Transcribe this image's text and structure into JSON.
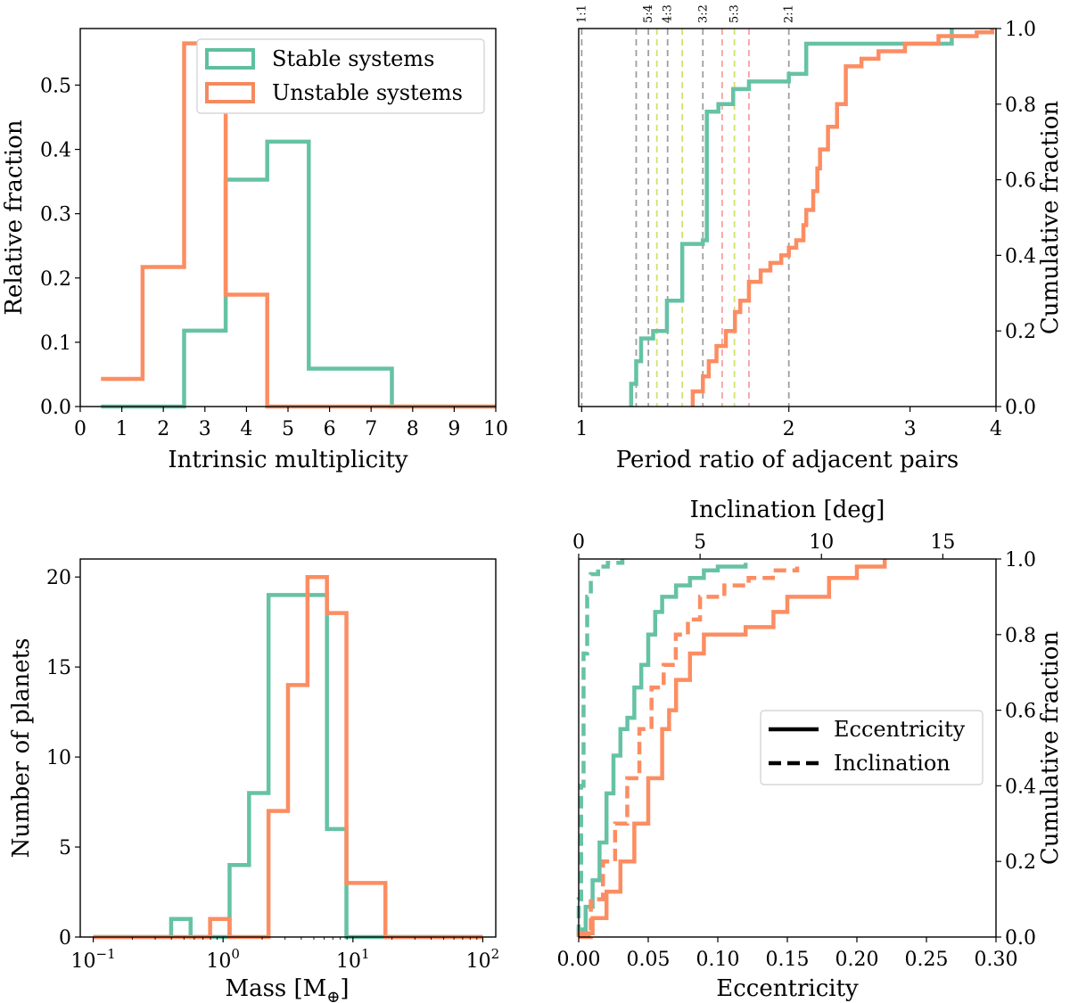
{
  "colors": {
    "stable": "#66c2a5",
    "unstable": "#fc8d62",
    "stable_legend": "#5fbf9f",
    "unstable_legend": "#f58a5e"
  },
  "chart_data": [
    {
      "id": "multiplicity",
      "type": "histogram-step",
      "xlabel": "Intrinsic multiplicity",
      "ylabel": "Relative fraction",
      "xlim": [
        0,
        10
      ],
      "ylim": [
        0,
        0.588
      ],
      "xticks": [
        "0",
        "1",
        "2",
        "3",
        "4",
        "5",
        "6",
        "7",
        "8",
        "9",
        "10"
      ],
      "yticks": [
        "0.0",
        "0.1",
        "0.2",
        "0.3",
        "0.4",
        "0.5"
      ],
      "bin_edges": [
        0.5,
        1.5,
        2.5,
        3.5,
        4.5,
        5.5,
        6.5,
        7.5,
        8.5,
        9.5,
        10.5
      ],
      "series": [
        {
          "name": "Stable systems",
          "values": [
            0,
            0,
            0.118,
            0.353,
            0.412,
            0.059,
            0.059,
            0,
            0,
            0
          ]
        },
        {
          "name": "Unstable systems",
          "values": [
            0.043,
            0.217,
            0.565,
            0.174,
            0,
            0,
            0,
            0,
            0,
            0
          ]
        }
      ],
      "legend": {
        "placement": "top-right",
        "entries": [
          "Stable systems",
          "Unstable systems"
        ]
      }
    },
    {
      "id": "period-ratio",
      "type": "cdf-step",
      "xlabel": "Period ratio of adjacent pairs",
      "ylabel": "Cumulative fraction",
      "xscale": "log",
      "xlim": [
        0.99,
        4
      ],
      "ylim": [
        0,
        1
      ],
      "xticks": [
        "1",
        "2",
        "3",
        "4"
      ],
      "yticks": [
        "0.0",
        "0.2",
        "0.4",
        "0.6",
        "0.8",
        "1.0"
      ],
      "resonances": [
        {
          "label": "1:1",
          "value": 1.0,
          "labeled": true,
          "color": "#9e9e9e"
        },
        {
          "label": "",
          "value": 1.2,
          "labeled": false,
          "color": "#9e9e9e"
        },
        {
          "label": "5:4",
          "value": 1.25,
          "labeled": true,
          "color": "#9e9e9e"
        },
        {
          "label": "",
          "value": 1.286,
          "labeled": false,
          "color": "#d4e06c"
        },
        {
          "label": "4:3",
          "value": 1.333,
          "labeled": true,
          "color": "#9e9e9e"
        },
        {
          "label": "",
          "value": 1.4,
          "labeled": false,
          "color": "#d4e06c"
        },
        {
          "label": "3:2",
          "value": 1.5,
          "labeled": true,
          "color": "#9e9e9e"
        },
        {
          "label": "",
          "value": 1.6,
          "labeled": false,
          "color": "#f4a3a3"
        },
        {
          "label": "5:3",
          "value": 1.667,
          "labeled": true,
          "color": "#d4e06c"
        },
        {
          "label": "",
          "value": 1.75,
          "labeled": false,
          "color": "#f4a3a3"
        },
        {
          "label": "2:1",
          "value": 2.0,
          "labeled": true,
          "color": "#9e9e9e"
        }
      ],
      "series": [
        {
          "name": "Stable systems",
          "x": [
            1.18,
            1.2,
            1.22,
            1.27,
            1.33,
            1.4,
            1.5,
            1.52,
            1.58,
            1.66,
            1.75,
            2.0,
            2.12,
            3.45
          ],
          "y": [
            0.06,
            0.12,
            0.18,
            0.2,
            0.28,
            0.43,
            0.44,
            0.78,
            0.8,
            0.84,
            0.86,
            0.88,
            0.96,
            1.0
          ]
        },
        {
          "name": "Unstable systems",
          "x": [
            1.45,
            1.5,
            1.53,
            1.57,
            1.62,
            1.67,
            1.7,
            1.75,
            1.82,
            1.88,
            1.95,
            2.0,
            2.05,
            2.1,
            2.12,
            2.17,
            2.2,
            2.22,
            2.28,
            2.35,
            2.42,
            2.55,
            2.7,
            2.95,
            3.3,
            3.75,
            3.95
          ],
          "y": [
            0.04,
            0.08,
            0.12,
            0.16,
            0.2,
            0.25,
            0.28,
            0.33,
            0.36,
            0.38,
            0.4,
            0.42,
            0.44,
            0.48,
            0.52,
            0.57,
            0.63,
            0.68,
            0.74,
            0.8,
            0.9,
            0.92,
            0.94,
            0.96,
            0.98,
            0.99,
            1.0
          ]
        }
      ]
    },
    {
      "id": "mass",
      "type": "histogram-step",
      "xlabel": "Mass [M",
      "xlabel_sub": "⊕",
      "xlabel_close": "]",
      "ylabel": "Number of planets",
      "xscale": "log",
      "xlim": [
        -1.1,
        2.1
      ],
      "ylim": [
        0,
        21
      ],
      "xticks": [
        {
          "base": "10",
          "exp": "−1"
        },
        {
          "base": "10",
          "exp": "0"
        },
        {
          "base": "10",
          "exp": "1"
        },
        {
          "base": "10",
          "exp": "2"
        }
      ],
      "yticks": [
        "0",
        "5",
        "10",
        "15",
        "20"
      ],
      "log_bin_edges": [
        -1.0,
        -0.85,
        -0.7,
        -0.55,
        -0.4,
        -0.25,
        -0.1,
        0.05,
        0.2,
        0.35,
        0.5,
        0.65,
        0.8,
        0.95,
        1.1,
        1.25,
        1.4,
        1.55,
        1.7,
        1.85,
        2.0
      ],
      "series": [
        {
          "name": "Stable systems",
          "values": [
            0,
            0,
            0,
            0,
            1,
            0,
            0,
            4,
            8,
            19,
            19,
            19,
            6,
            0,
            0,
            0,
            0,
            0,
            0,
            0
          ]
        },
        {
          "name": "Unstable systems",
          "values": [
            0,
            0,
            0,
            0,
            0,
            0,
            1,
            0,
            0,
            7,
            14,
            20,
            18,
            3,
            3,
            0,
            0,
            0,
            0,
            0
          ]
        }
      ]
    },
    {
      "id": "ecc-inc",
      "type": "cdf-step",
      "xlabel": "Eccentricity",
      "xlabel_top": "Inclination [deg]",
      "ylabel": "Cumulative fraction",
      "xlim": [
        0,
        0.3
      ],
      "xlim_top": [
        0,
        17.19
      ],
      "ylim": [
        0,
        1
      ],
      "xticks": [
        "0.00",
        "0.05",
        "0.10",
        "0.15",
        "0.20",
        "0.25",
        "0.30"
      ],
      "xticks_top": [
        "0",
        "5",
        "10",
        "15"
      ],
      "yticks": [
        "0.0",
        "0.2",
        "0.4",
        "0.6",
        "0.8",
        "1.0"
      ],
      "legend": {
        "placement": "center-right",
        "entries": [
          "Eccentricity",
          "Inclination"
        ]
      },
      "series": [
        {
          "name": "Stable eccentricity",
          "color_key": "stable",
          "style": "solid",
          "x": [
            0.0,
            0.005,
            0.01,
            0.015,
            0.02,
            0.025,
            0.03,
            0.035,
            0.04,
            0.045,
            0.05,
            0.055,
            0.06,
            0.07,
            0.08,
            0.09,
            0.1,
            0.12
          ],
          "y": [
            0.02,
            0.08,
            0.15,
            0.25,
            0.38,
            0.48,
            0.55,
            0.58,
            0.66,
            0.72,
            0.8,
            0.86,
            0.9,
            0.93,
            0.95,
            0.97,
            0.98,
            0.99
          ]
        },
        {
          "name": "Stable inclination",
          "color_key": "stable",
          "style": "dashed",
          "axis": "top",
          "x": [
            0.0,
            0.1,
            0.2,
            0.35,
            0.5,
            0.8,
            1.2,
            1.8
          ],
          "y": [
            0.1,
            0.4,
            0.75,
            0.9,
            0.96,
            0.98,
            0.99,
            1.0
          ]
        },
        {
          "name": "Unstable eccentricity",
          "color_key": "unstable",
          "style": "solid",
          "x": [
            0.0,
            0.01,
            0.02,
            0.03,
            0.04,
            0.05,
            0.06,
            0.065,
            0.07,
            0.08,
            0.09,
            0.1,
            0.12,
            0.14,
            0.15,
            0.18,
            0.2,
            0.22
          ],
          "y": [
            0.01,
            0.05,
            0.12,
            0.2,
            0.3,
            0.42,
            0.55,
            0.6,
            0.68,
            0.75,
            0.8,
            0.8,
            0.82,
            0.86,
            0.9,
            0.95,
            0.98,
            1.0
          ]
        },
        {
          "name": "Unstable inclination",
          "color_key": "unstable",
          "style": "dashed",
          "axis": "top",
          "x": [
            0.0,
            0.5,
            1.0,
            1.5,
            2.0,
            2.5,
            3.0,
            3.5,
            4.0,
            4.5,
            5.0,
            6.0,
            7.0,
            8.0,
            9.0
          ],
          "y": [
            0.0,
            0.1,
            0.2,
            0.3,
            0.42,
            0.55,
            0.66,
            0.72,
            0.8,
            0.84,
            0.9,
            0.93,
            0.95,
            0.97,
            0.98
          ]
        }
      ]
    }
  ]
}
